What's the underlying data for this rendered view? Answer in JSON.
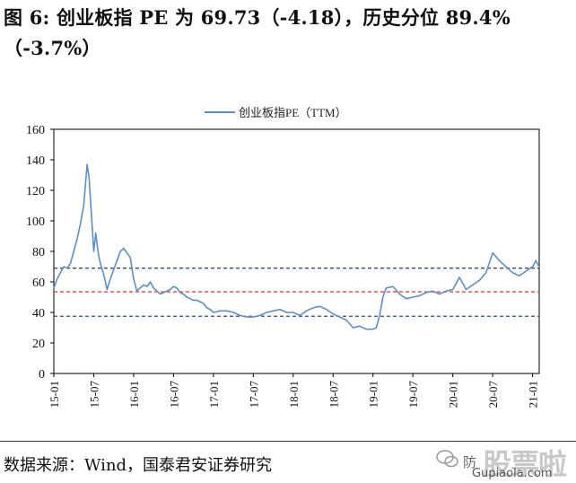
{
  "header": {
    "line1": "图 6: 创业板指 PE 为 69.73（-4.18），历史分位 89.4%",
    "line2": "（-3.7%）"
  },
  "source_text": "数据来源：Wind，国泰君安证券研究",
  "watermark": {
    "icon": "wechat-icon",
    "small_text": "防",
    "big_text": "股票啦",
    "url": "Gupiaola.com"
  },
  "colors": {
    "series": "#5b8fc9",
    "mean_line": "#e8453c",
    "band_line": "#2f4b7c",
    "axis": "#000000"
  },
  "chart_data": {
    "type": "line",
    "title": "",
    "legend": {
      "label": "创业板指PE（TTM）",
      "position": "top-center"
    },
    "xlabel": "",
    "ylabel": "",
    "ylim": [
      0,
      160
    ],
    "yticks": [
      0,
      20,
      40,
      60,
      80,
      100,
      120,
      140,
      160
    ],
    "xticks": [
      "15-01",
      "15-07",
      "16-01",
      "16-07",
      "17-01",
      "17-07",
      "18-01",
      "18-07",
      "19-01",
      "19-07",
      "20-01",
      "20-07",
      "21-01"
    ],
    "x_range": [
      "2015-01",
      "2021-02"
    ],
    "grid": false,
    "reference_lines": [
      {
        "style": "dashed",
        "color_key": "band_line",
        "y": 69
      },
      {
        "style": "dashed",
        "color_key": "mean_line",
        "y": 53.5
      },
      {
        "style": "dashed",
        "color_key": "band_line",
        "y": 37.5
      }
    ],
    "series": [
      {
        "name": "创业板指PE（TTM）",
        "points": [
          [
            "15-01",
            56
          ],
          [
            "15-01.5",
            62
          ],
          [
            "15-02",
            66
          ],
          [
            "15-02.5",
            70
          ],
          [
            "15-03",
            69
          ],
          [
            "15-03.5",
            72
          ],
          [
            "15-04",
            80
          ],
          [
            "15-04.5",
            88
          ],
          [
            "15-05",
            98
          ],
          [
            "15-05.5",
            110
          ],
          [
            "15-06",
            137
          ],
          [
            "15-06.3",
            128
          ],
          [
            "15-06.6",
            108
          ],
          [
            "15-07",
            80
          ],
          [
            "15-07.3",
            92
          ],
          [
            "15-07.7",
            78
          ],
          [
            "15-08",
            72
          ],
          [
            "15-08.5",
            65
          ],
          [
            "15-09",
            55
          ],
          [
            "15-09.5",
            62
          ],
          [
            "15-10",
            68
          ],
          [
            "15-10.5",
            74
          ],
          [
            "15-11",
            80
          ],
          [
            "15-11.5",
            82
          ],
          [
            "15-12",
            79
          ],
          [
            "15-12.5",
            76
          ],
          [
            "16-01",
            62
          ],
          [
            "16-01.5",
            54
          ],
          [
            "16-02",
            56
          ],
          [
            "16-02.5",
            58
          ],
          [
            "16-03",
            57
          ],
          [
            "16-03.5",
            60
          ],
          [
            "16-04",
            56
          ],
          [
            "16-04.5",
            54
          ],
          [
            "16-05",
            52
          ],
          [
            "16-05.5",
            53
          ],
          [
            "16-06",
            54
          ],
          [
            "16-06.5",
            55
          ],
          [
            "16-07",
            57
          ],
          [
            "16-07.5",
            56
          ],
          [
            "16-08",
            53
          ],
          [
            "16-08.5",
            52
          ],
          [
            "16-09",
            50
          ],
          [
            "16-09.5",
            49
          ],
          [
            "16-10",
            48
          ],
          [
            "16-10.5",
            48
          ],
          [
            "16-11",
            47
          ],
          [
            "16-11.5",
            46
          ],
          [
            "16-12",
            43
          ],
          [
            "16-12.5",
            42
          ],
          [
            "17-01",
            40
          ],
          [
            "17-02",
            41
          ],
          [
            "17-03",
            41
          ],
          [
            "17-04",
            40
          ],
          [
            "17-05",
            38
          ],
          [
            "17-06",
            37
          ],
          [
            "17-07",
            37
          ],
          [
            "17-08",
            38
          ],
          [
            "17-09",
            40
          ],
          [
            "17-10",
            41
          ],
          [
            "17-11",
            42
          ],
          [
            "17-12",
            40
          ],
          [
            "18-01",
            40
          ],
          [
            "18-02",
            38
          ],
          [
            "18-03",
            41
          ],
          [
            "18-04",
            43
          ],
          [
            "18-05",
            44
          ],
          [
            "18-06",
            42
          ],
          [
            "18-07",
            39
          ],
          [
            "18-08",
            37
          ],
          [
            "18-09",
            35
          ],
          [
            "18-10",
            30
          ],
          [
            "18-11",
            31
          ],
          [
            "18-12",
            29
          ],
          [
            "19-01",
            29
          ],
          [
            "19-01.5",
            30
          ],
          [
            "19-02",
            38
          ],
          [
            "19-02.5",
            50
          ],
          [
            "19-03",
            56
          ],
          [
            "19-04",
            57
          ],
          [
            "19-05",
            52
          ],
          [
            "19-06",
            49
          ],
          [
            "19-07",
            50
          ],
          [
            "19-08",
            51
          ],
          [
            "19-09",
            53
          ],
          [
            "19-10",
            54
          ],
          [
            "19-11",
            52
          ],
          [
            "19-12",
            54
          ],
          [
            "20-01",
            55
          ],
          [
            "20-02",
            63
          ],
          [
            "20-03",
            55
          ],
          [
            "20-04",
            58
          ],
          [
            "20-05",
            61
          ],
          [
            "20-06",
            66
          ],
          [
            "20-07",
            79
          ],
          [
            "20-08",
            74
          ],
          [
            "20-09",
            70
          ],
          [
            "20-10",
            66
          ],
          [
            "20-11",
            64
          ],
          [
            "20-12",
            67
          ],
          [
            "21-01",
            70
          ],
          [
            "21-01.5",
            74
          ],
          [
            "21-02",
            69.73
          ]
        ]
      }
    ]
  }
}
